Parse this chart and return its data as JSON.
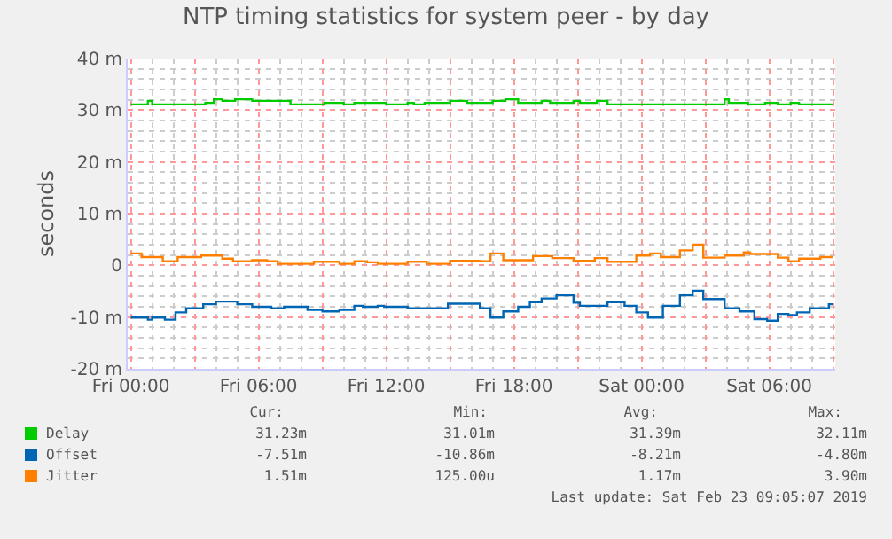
{
  "chart_data": {
    "type": "step",
    "title": "NTP timing statistics for system peer - by day",
    "ylabel": "seconds",
    "xlim": [
      "2019-02-21T23:51",
      "2019-02-23T09:06"
    ],
    "xticks": [
      {
        "value": "2019-02-22T00:00",
        "label": "Fri 00:00"
      },
      {
        "value": "2019-02-22T03:00",
        "label": null
      },
      {
        "value": "2019-02-22T06:00",
        "label": "Fri 06:00"
      },
      {
        "value": "2019-02-22T09:00",
        "label": null
      },
      {
        "value": "2019-02-22T12:00",
        "label": "Fri 12:00"
      },
      {
        "value": "2019-02-22T15:00",
        "label": null
      },
      {
        "value": "2019-02-22T18:00",
        "label": "Fri 18:00"
      },
      {
        "value": "2019-02-22T21:00",
        "label": null
      },
      {
        "value": "2019-02-23T00:00",
        "label": "Sat 00:00"
      },
      {
        "value": "2019-02-23T03:00",
        "label": null
      },
      {
        "value": "2019-02-23T06:00",
        "label": "Sat 06:00"
      },
      {
        "value": "2019-02-23T09:00",
        "label": null
      }
    ],
    "ylim": [
      -20,
      40
    ],
    "yticks": [
      {
        "value": -20,
        "label": "-20 m"
      },
      {
        "value": -10,
        "label": "-10 m"
      },
      0,
      {
        "value": 10,
        "label": "10 m"
      },
      {
        "value": 20,
        "label": "20 m"
      },
      {
        "value": 30,
        "label": "30 m"
      },
      {
        "value": 40,
        "label": "40 m"
      }
    ],
    "grid": true,
    "legend": "bottom",
    "marker": "none",
    "line_style": "solid",
    "series": [
      {
        "name": "Delay",
        "color": "#00cc00",
        "x": [
          "2019-02-22T00:00",
          "2019-02-22T00:48",
          "2019-02-22T01:00",
          "2019-02-22T03:30",
          "2019-02-22T03:54",
          "2019-02-22T04:18",
          "2019-02-22T04:54",
          "2019-02-22T05:42",
          "2019-02-22T07:30",
          "2019-02-22T09:06",
          "2019-02-22T10:00",
          "2019-02-22T10:30",
          "2019-02-22T12:00",
          "2019-02-22T13:00",
          "2019-02-22T13:18",
          "2019-02-22T13:48",
          "2019-02-22T15:00",
          "2019-02-22T15:48",
          "2019-02-22T17:00",
          "2019-02-22T17:36",
          "2019-02-22T18:12",
          "2019-02-22T19:18",
          "2019-02-22T19:42",
          "2019-02-22T20:48",
          "2019-02-22T21:06",
          "2019-02-22T21:54",
          "2019-02-22T22:24",
          "2019-02-23T03:54",
          "2019-02-23T04:06",
          "2019-02-23T05:00",
          "2019-02-23T05:48",
          "2019-02-23T06:24",
          "2019-02-23T07:00",
          "2019-02-23T07:24",
          "2019-02-23T09:00"
        ],
        "values": [
          31.1,
          31.8,
          31.1,
          31.4,
          32.1,
          31.8,
          32.1,
          31.8,
          31.1,
          31.4,
          31.1,
          31.4,
          31.1,
          31.4,
          31.1,
          31.4,
          31.8,
          31.4,
          31.8,
          32.1,
          31.4,
          31.8,
          31.4,
          31.8,
          31.4,
          31.8,
          31.1,
          32.1,
          31.4,
          31.1,
          31.4,
          31.1,
          31.4,
          31.1,
          31.1
        ]
      },
      {
        "name": "Offset",
        "color": "#0066b3",
        "x": [
          "2019-02-22T00:00",
          "2019-02-22T00:48",
          "2019-02-22T01:00",
          "2019-02-22T01:36",
          "2019-02-22T02:06",
          "2019-02-22T02:36",
          "2019-02-22T03:24",
          "2019-02-22T04:00",
          "2019-02-22T05:00",
          "2019-02-22T05:42",
          "2019-02-22T06:36",
          "2019-02-22T07:12",
          "2019-02-22T08:18",
          "2019-02-22T09:00",
          "2019-02-22T09:48",
          "2019-02-22T10:30",
          "2019-02-22T10:54",
          "2019-02-22T11:36",
          "2019-02-22T11:54",
          "2019-02-22T13:00",
          "2019-02-22T14:54",
          "2019-02-22T16:24",
          "2019-02-22T16:54",
          "2019-02-22T17:30",
          "2019-02-22T18:12",
          "2019-02-22T18:45",
          "2019-02-22T19:18",
          "2019-02-22T20:00",
          "2019-02-22T20:48",
          "2019-02-22T21:06",
          "2019-02-22T22:24",
          "2019-02-22T23:12",
          "2019-02-22T23:45",
          "2019-02-23T00:18",
          "2019-02-23T01:00",
          "2019-02-23T01:48",
          "2019-02-23T02:24",
          "2019-02-23T02:54",
          "2019-02-23T03:54",
          "2019-02-23T04:36",
          "2019-02-23T05:18",
          "2019-02-23T05:54",
          "2019-02-23T06:24",
          "2019-02-23T06:54",
          "2019-02-23T07:18",
          "2019-02-23T07:54",
          "2019-02-23T08:48",
          "2019-02-23T09:00"
        ],
        "values": [
          -10.1,
          -10.5,
          -10.1,
          -10.5,
          -9.1,
          -8.3,
          -7.5,
          -7.0,
          -7.5,
          -8.0,
          -8.3,
          -8.0,
          -8.6,
          -8.9,
          -8.6,
          -7.8,
          -8.0,
          -7.8,
          -8.0,
          -8.3,
          -7.4,
          -8.3,
          -10.1,
          -8.9,
          -8.0,
          -7.1,
          -6.4,
          -5.8,
          -7.2,
          -7.8,
          -7.1,
          -7.8,
          -9.1,
          -10.1,
          -7.8,
          -5.8,
          -4.9,
          -6.5,
          -8.3,
          -8.9,
          -10.4,
          -10.7,
          -9.4,
          -9.6,
          -9.1,
          -8.3,
          -7.5,
          -7.5
        ]
      },
      {
        "name": "Jitter",
        "color": "#ff8000",
        "x": [
          "2019-02-22T00:00",
          "2019-02-22T00:30",
          "2019-02-22T01:30",
          "2019-02-22T02:12",
          "2019-02-22T03:18",
          "2019-02-22T04:18",
          "2019-02-22T04:48",
          "2019-02-22T05:42",
          "2019-02-22T06:24",
          "2019-02-22T06:54",
          "2019-02-22T08:36",
          "2019-02-22T09:48",
          "2019-02-22T10:30",
          "2019-02-22T11:06",
          "2019-02-22T11:36",
          "2019-02-22T13:00",
          "2019-02-22T13:54",
          "2019-02-22T15:00",
          "2019-02-22T16:24",
          "2019-02-22T16:54",
          "2019-02-22T17:30",
          "2019-02-22T18:54",
          "2019-02-22T19:48",
          "2019-02-22T20:48",
          "2019-02-22T21:48",
          "2019-02-22T22:24",
          "2019-02-22T23:45",
          "2019-02-23T00:24",
          "2019-02-23T00:54",
          "2019-02-23T01:48",
          "2019-02-23T02:24",
          "2019-02-23T02:54",
          "2019-02-23T03:54",
          "2019-02-23T04:48",
          "2019-02-23T05:06",
          "2019-02-23T06:24",
          "2019-02-23T06:54",
          "2019-02-23T07:24",
          "2019-02-23T08:24",
          "2019-02-23T09:00"
        ],
        "values": [
          2.3,
          1.6,
          0.8,
          1.6,
          1.9,
          1.3,
          0.8,
          1.0,
          0.8,
          0.3,
          0.7,
          0.3,
          0.8,
          0.6,
          0.3,
          0.7,
          0.3,
          0.9,
          0.8,
          2.3,
          1.0,
          1.8,
          1.4,
          0.9,
          1.4,
          0.7,
          1.9,
          2.3,
          1.6,
          2.9,
          4.0,
          1.5,
          1.9,
          2.5,
          2.2,
          1.5,
          0.8,
          1.3,
          1.6,
          1.6
        ]
      }
    ],
    "annotations": [
      "Cur:",
      "Min:",
      "Avg:",
      "Max:",
      "31.23m",
      "31.01m",
      "31.39m",
      "32.11m",
      "-7.51m",
      "-10.86m",
      "-8.21m",
      "-4.80m",
      "1.51m",
      "125.00u",
      "1.17m",
      "3.90m",
      "Last update: Sat Feb 23 09:05:07 2019"
    ]
  }
}
